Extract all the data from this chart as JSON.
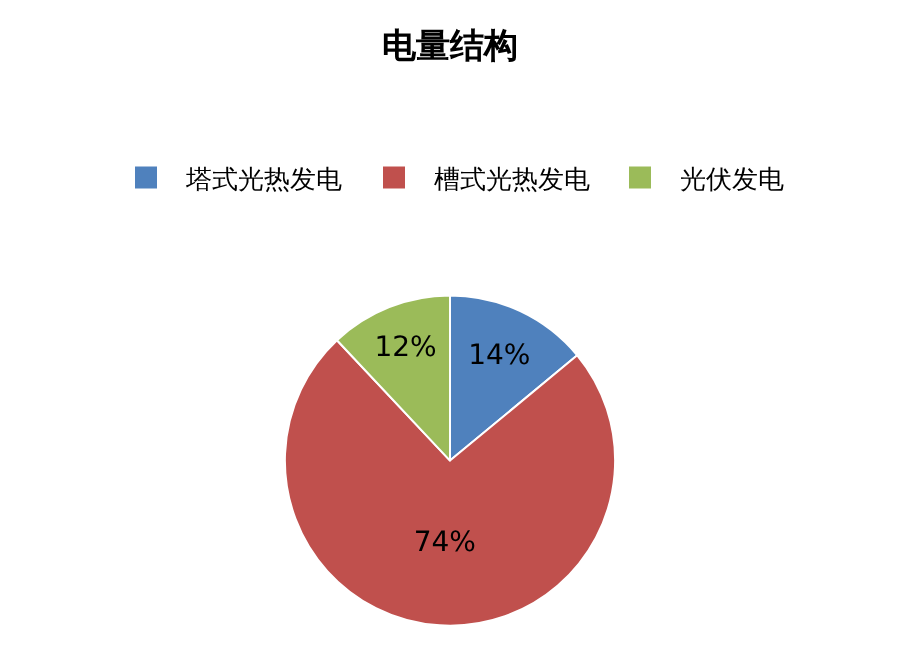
{
  "chart_data": {
    "type": "pie",
    "title": "电量结构",
    "categories": [
      "塔式光热发电",
      "槽式光热发电",
      "光伏发电"
    ],
    "values": [
      14,
      74,
      12
    ],
    "value_labels": [
      "14%",
      "74%",
      "12%"
    ],
    "colors": [
      "#4f81bd",
      "#c0504d",
      "#9bbb59"
    ],
    "legend": "top"
  }
}
